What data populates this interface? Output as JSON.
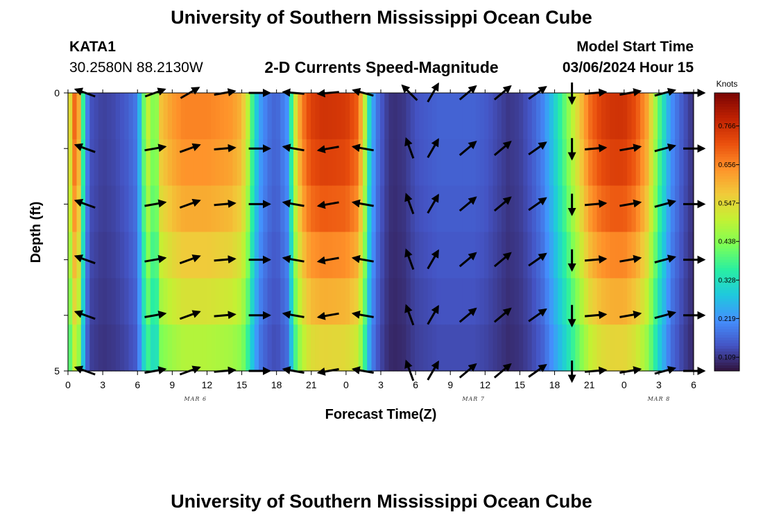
{
  "header": {
    "title": "University of Southern Mississippi Ocean Cube",
    "station": "KATA1",
    "coords": "30.2580N  88.2130W",
    "plot_title": "2-D Currents Speed-Magnitude",
    "model_start_label": "Model Start Time",
    "model_start_value": "03/06/2024 Hour 15"
  },
  "footer": {
    "title": "University of Southern Mississippi Ocean Cube"
  },
  "colors": {
    "scale": [
      "#30123b",
      "#4454c4",
      "#4490fe",
      "#1fc8de",
      "#29efa2",
      "#7eff55",
      "#c4f133",
      "#f1ca3a",
      "#fe922a",
      "#ea4f0d",
      "#be2102",
      "#7a0403"
    ]
  },
  "chart_data": {
    "type": "heatmap",
    "xlabel": "Forecast Time(Z)",
    "ylabel": "Depth (ft)",
    "x_tick_labels": [
      "0",
      "3",
      "6",
      "9",
      "12",
      "15",
      "18",
      "21",
      "0",
      "3",
      "6",
      "9",
      "12",
      "15",
      "18",
      "21",
      "0",
      "3",
      "6"
    ],
    "date_labels": [
      {
        "text": "MAR 6",
        "hour": 11
      },
      {
        "text": "MAR 7",
        "hour": 35
      },
      {
        "text": "MAR 8",
        "hour": 51
      }
    ],
    "x_range_hours": [
      0,
      54
    ],
    "y_range_ft": [
      0,
      5
    ],
    "y_tick_labels": [
      {
        "value": 0,
        "text": "0"
      },
      {
        "value": 1,
        "text": ""
      },
      {
        "value": 2,
        "text": ""
      },
      {
        "value": 3,
        "text": ""
      },
      {
        "value": 4,
        "text": ""
      },
      {
        "value": 5,
        "text": "5"
      }
    ],
    "arrow_depths_ft": [
      0,
      1,
      2,
      3,
      4,
      5
    ],
    "colorbar": {
      "unit": "Knots",
      "min": 0.07,
      "max": 0.86,
      "tick_labels": [
        "0.766",
        "0.656",
        "0.547",
        "0.438",
        "0.328",
        "0.219",
        "0.109"
      ]
    },
    "speed_profile": {
      "hours": [
        0,
        0.5,
        1,
        1.5,
        2,
        3,
        4,
        5,
        6,
        6.5,
        7,
        7.5,
        8,
        9,
        10,
        12,
        14,
        15,
        15.5,
        16,
        16.5,
        17,
        17.5,
        18,
        19,
        19.5,
        20,
        20.5,
        21,
        22,
        24,
        25,
        25.5,
        26,
        26.5,
        27,
        27.5,
        28,
        29,
        30,
        32,
        34,
        35,
        36,
        37,
        38,
        39,
        40,
        41,
        42,
        43,
        44,
        45,
        46,
        47,
        48,
        49,
        50,
        51,
        52,
        53,
        54
      ],
      "values": [
        0.45,
        0.7,
        0.6,
        0.22,
        0.14,
        0.12,
        0.13,
        0.15,
        0.19,
        0.4,
        0.52,
        0.38,
        0.58,
        0.63,
        0.66,
        0.66,
        0.64,
        0.6,
        0.5,
        0.35,
        0.24,
        0.2,
        0.17,
        0.16,
        0.22,
        0.48,
        0.62,
        0.7,
        0.74,
        0.76,
        0.75,
        0.7,
        0.55,
        0.32,
        0.2,
        0.15,
        0.12,
        0.1,
        0.11,
        0.14,
        0.16,
        0.16,
        0.16,
        0.15,
        0.13,
        0.11,
        0.12,
        0.15,
        0.2,
        0.3,
        0.42,
        0.55,
        0.68,
        0.74,
        0.76,
        0.76,
        0.72,
        0.62,
        0.4,
        0.22,
        0.15,
        0.1
      ],
      "depth_factors": [
        1.0,
        0.97,
        0.92,
        0.85,
        0.78,
        0.7
      ]
    },
    "arrows": {
      "hours": [
        1.5,
        7.5,
        10.5,
        13.5,
        16.5,
        19.5,
        22.5,
        25.5,
        29.5,
        31.5,
        34.5,
        37.5,
        40.5,
        43.5,
        45.5,
        48.5,
        51.5,
        54
      ],
      "angles_deg": [
        160,
        10,
        20,
        5,
        0,
        170,
        190,
        170,
        110,
        60,
        40,
        40,
        35,
        -90,
        5,
        10,
        15,
        0
      ],
      "surface_angles_deg": [
        160,
        20,
        30,
        10,
        0,
        175,
        185,
        165,
        135,
        60,
        40,
        40,
        35,
        -90,
        5,
        10,
        15,
        0
      ],
      "length_px": 30
    }
  }
}
